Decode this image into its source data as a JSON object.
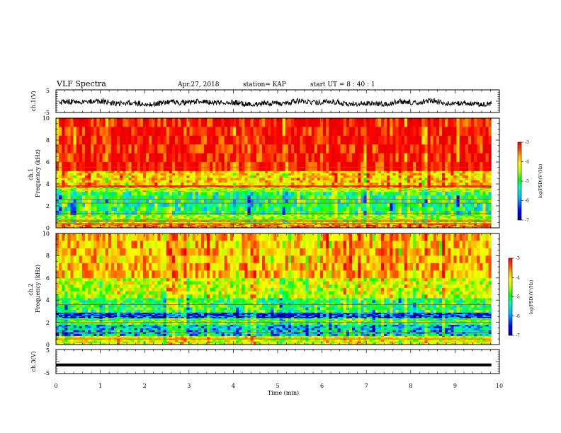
{
  "header": {
    "title": "VLF Spectra",
    "date": "Apr.27, 2018",
    "station": "station= KAP",
    "start_ut": "start  UT =  8 : 40 : 1"
  },
  "chart_data": [
    {
      "type": "line",
      "name": "ch1-waveform",
      "ylabel": "ch.1(V)",
      "ylim": [
        -5,
        5
      ],
      "yticks": [
        "5",
        "-5"
      ],
      "xlim": [
        0,
        10
      ],
      "x_range_min": [
        0.08,
        9.82
      ],
      "level_v": -0.7,
      "envelope_v": [
        -2.2,
        1.8
      ],
      "color": "#000000"
    },
    {
      "type": "heatmap",
      "name": "ch1-spectrogram",
      "ylabel": "ch.1\nFrequency (kHz)",
      "ylim": [
        0,
        10
      ],
      "yticks": [
        "0",
        "2",
        "4",
        "6",
        "8",
        "10"
      ],
      "xlim": [
        0,
        10
      ],
      "x_range_min": [
        0.0,
        9.82
      ],
      "bands": [
        {
          "from_khz": 0.0,
          "to_khz": 0.4,
          "level": -4.0
        },
        {
          "from_khz": 0.4,
          "to_khz": 1.2,
          "level": -5.1
        },
        {
          "from_khz": 1.2,
          "to_khz": 3.3,
          "level": -5.6
        },
        {
          "from_khz": 3.3,
          "to_khz": 3.7,
          "level": -4.9
        },
        {
          "from_khz": 3.7,
          "to_khz": 3.9,
          "level": -3.6
        },
        {
          "from_khz": 3.9,
          "to_khz": 5.2,
          "level": -4.4
        },
        {
          "from_khz": 5.2,
          "to_khz": 10.0,
          "level": -3.5
        }
      ],
      "lines_khz": [
        0.4,
        0.55,
        0.7,
        1.3,
        2.25,
        2.6,
        3.8,
        5.5
      ],
      "colorbar": {
        "label": "log(PSD)(V²/Hz)",
        "ticks": [
          "-3",
          "-4",
          "-5",
          "-6",
          "-7"
        ],
        "range": [
          -7,
          -3
        ]
      }
    },
    {
      "type": "heatmap",
      "name": "ch2-spectrogram",
      "ylabel": "ch.2\nFrequency (kHz)",
      "ylim": [
        0,
        10
      ],
      "yticks": [
        "0",
        "2",
        "4",
        "6",
        "8",
        "10"
      ],
      "xlim": [
        0,
        10
      ],
      "x_range_min": [
        0.0,
        9.82
      ],
      "bands": [
        {
          "from_khz": 0.0,
          "to_khz": 0.8,
          "level": -4.7
        },
        {
          "from_khz": 0.8,
          "to_khz": 1.8,
          "level": -6.0
        },
        {
          "from_khz": 1.8,
          "to_khz": 2.4,
          "level": -5.4
        },
        {
          "from_khz": 2.4,
          "to_khz": 2.9,
          "level": -6.6
        },
        {
          "from_khz": 2.9,
          "to_khz": 4.2,
          "level": -5.5
        },
        {
          "from_khz": 4.2,
          "to_khz": 6.0,
          "level": -4.8
        },
        {
          "from_khz": 6.0,
          "to_khz": 10.0,
          "level": -4.3
        }
      ],
      "lines_khz": [
        0.5,
        1.1,
        2.0,
        3.6
      ],
      "colorbar": {
        "label": "log(PSD)(V²/Hz)",
        "ticks": [
          "-3",
          "-4",
          "-5",
          "-6",
          "-7"
        ],
        "range": [
          -7,
          -3
        ]
      }
    },
    {
      "type": "line",
      "name": "ch3-waveform",
      "ylabel": "ch.3(V)",
      "ylim": [
        -5,
        5
      ],
      "yticks": [
        "5",
        "-5"
      ],
      "xlim": [
        0,
        10
      ],
      "x_range_min": [
        0.0,
        9.82
      ],
      "level_v": -1.4,
      "color": "#000000"
    }
  ],
  "x_axis": {
    "label": "Time (min)",
    "ticks": [
      "0",
      "1",
      "2",
      "3",
      "4",
      "5",
      "6",
      "7",
      "8",
      "9",
      "10"
    ],
    "range": [
      0,
      10
    ]
  },
  "colors": {
    "colormap": [
      "#00008c",
      "#0000ff",
      "#00b4ff",
      "#00ffb4",
      "#00ff00",
      "#b4ff00",
      "#ffff00",
      "#ffb400",
      "#ff5000",
      "#ff0000",
      "#e60000"
    ]
  }
}
